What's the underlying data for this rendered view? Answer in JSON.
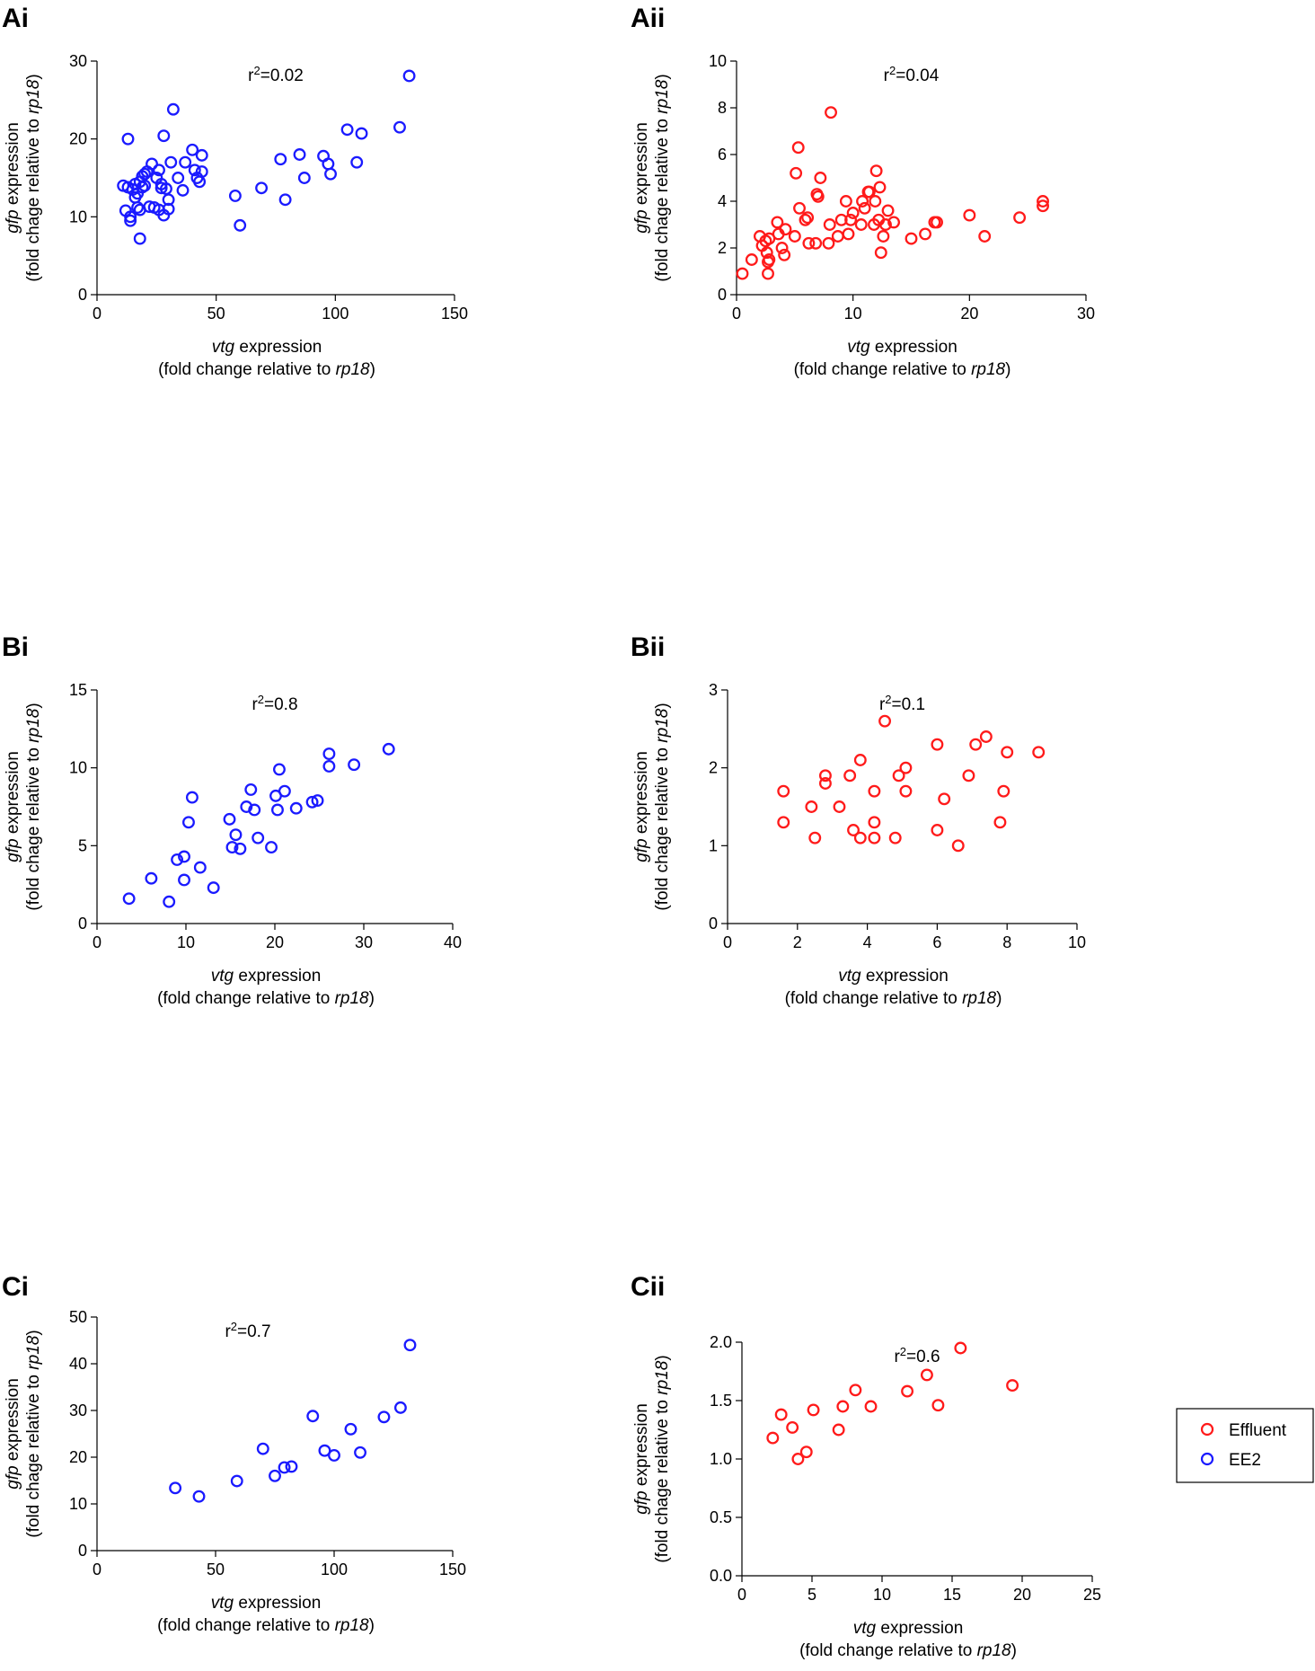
{
  "legend": {
    "entries": [
      {
        "label": "Effluent",
        "color": "#ff1a1a"
      },
      {
        "label": "EE2",
        "color": "#1a1aff"
      }
    ]
  },
  "axis_titles": {
    "x_main": "vtg",
    "x_rest": " expression",
    "x_sub_pre": "(fold change relative to ",
    "x_sub_gene": "rp18",
    "x_sub_post": ")",
    "y_main": "gfp",
    "y_rest": " expression",
    "y_sub_pre": "(fold chage relative to ",
    "y_sub_gene": "rp18",
    "y_sub_post": ")"
  },
  "chart_data": [
    {
      "panel": "Ai",
      "type": "scatter",
      "series": "EE2",
      "color": "#1a1aff",
      "r2_label": "r",
      "r2_sup": "2",
      "r2_value": "=0.02",
      "xlim": [
        0,
        150
      ],
      "ylim": [
        0,
        30
      ],
      "xticks": [
        0,
        50,
        100,
        150
      ],
      "yticks": [
        0,
        10,
        20,
        30
      ],
      "yticklabels": [
        "0",
        "10",
        "20",
        "30"
      ],
      "points": [
        [
          11,
          14
        ],
        [
          12,
          10.8
        ],
        [
          13,
          20
        ],
        [
          13,
          13.8
        ],
        [
          14,
          10
        ],
        [
          14,
          9.5
        ],
        [
          15,
          13.5
        ],
        [
          16,
          14.2
        ],
        [
          16,
          12.5
        ],
        [
          17,
          13
        ],
        [
          17,
          11.2
        ],
        [
          18,
          7.2
        ],
        [
          18,
          10.9
        ],
        [
          18,
          14.5
        ],
        [
          19,
          13.8
        ],
        [
          19,
          15.2
        ],
        [
          20,
          15.5
        ],
        [
          20,
          14
        ],
        [
          21,
          15.8
        ],
        [
          22,
          11.3
        ],
        [
          23,
          16.8
        ],
        [
          24,
          11.2
        ],
        [
          25,
          15
        ],
        [
          26,
          10.9
        ],
        [
          26,
          16
        ],
        [
          27,
          14.2
        ],
        [
          27,
          13.7
        ],
        [
          28,
          10.2
        ],
        [
          28,
          20.4
        ],
        [
          29,
          13.6
        ],
        [
          30,
          11
        ],
        [
          30,
          12.2
        ],
        [
          31,
          17
        ],
        [
          32,
          23.8
        ],
        [
          34,
          15
        ],
        [
          36,
          13.4
        ],
        [
          37,
          17
        ],
        [
          40,
          18.6
        ],
        [
          41,
          16
        ],
        [
          42,
          15
        ],
        [
          43,
          14.5
        ],
        [
          44,
          17.9
        ],
        [
          44,
          15.8
        ],
        [
          58,
          12.7
        ],
        [
          60,
          8.9
        ],
        [
          69,
          13.7
        ],
        [
          77,
          17.4
        ],
        [
          79,
          12.2
        ],
        [
          85,
          18
        ],
        [
          87,
          15
        ],
        [
          95,
          17.8
        ],
        [
          97,
          16.8
        ],
        [
          98,
          15.5
        ],
        [
          105,
          21.2
        ],
        [
          109,
          17
        ],
        [
          111,
          20.7
        ],
        [
          127,
          21.5
        ],
        [
          131,
          28.1
        ]
      ]
    },
    {
      "panel": "Aii",
      "type": "scatter",
      "series": "Effluent",
      "color": "#ff1a1a",
      "r2_label": "r",
      "r2_sup": "2",
      "r2_value": "=0.04",
      "xlim": [
        0,
        30
      ],
      "ylim": [
        0,
        10
      ],
      "xticks": [
        0,
        10,
        20,
        30
      ],
      "yticks": [
        0,
        2,
        4,
        6,
        8,
        10
      ],
      "yticklabels": [
        "0",
        "2",
        "4",
        "6",
        "8",
        "10"
      ],
      "points": [
        [
          0.5,
          0.9
        ],
        [
          1.3,
          1.5
        ],
        [
          2,
          2.5
        ],
        [
          2.2,
          2.1
        ],
        [
          2.5,
          2.3
        ],
        [
          2.6,
          1.8
        ],
        [
          2.7,
          1.4
        ],
        [
          2.7,
          0.9
        ],
        [
          2.8,
          2.4
        ],
        [
          2.8,
          1.5
        ],
        [
          3.5,
          3.1
        ],
        [
          3.6,
          2.6
        ],
        [
          3.9,
          2
        ],
        [
          4.1,
          1.7
        ],
        [
          4.2,
          2.8
        ],
        [
          5,
          2.5
        ],
        [
          5.1,
          5.2
        ],
        [
          5.3,
          6.3
        ],
        [
          5.4,
          3.7
        ],
        [
          5.9,
          3.2
        ],
        [
          6.1,
          3.3
        ],
        [
          6.2,
          2.2
        ],
        [
          6.8,
          2.2
        ],
        [
          6.9,
          4.3
        ],
        [
          7,
          4.2
        ],
        [
          7.2,
          5
        ],
        [
          7.9,
          2.2
        ],
        [
          8,
          3
        ],
        [
          8.1,
          7.8
        ],
        [
          8.7,
          2.5
        ],
        [
          9,
          3.2
        ],
        [
          9.4,
          4
        ],
        [
          9.6,
          2.6
        ],
        [
          9.8,
          3.2
        ],
        [
          10,
          3.5
        ],
        [
          10.7,
          3
        ],
        [
          10.8,
          4
        ],
        [
          11,
          3.7
        ],
        [
          11.3,
          4.4
        ],
        [
          11.4,
          4.4
        ],
        [
          11.8,
          3
        ],
        [
          11.9,
          4
        ],
        [
          12,
          5.3
        ],
        [
          12.2,
          3.2
        ],
        [
          12.3,
          4.6
        ],
        [
          12.4,
          1.8
        ],
        [
          12.6,
          2.5
        ],
        [
          12.8,
          3
        ],
        [
          13,
          3.6
        ],
        [
          13.5,
          3.1
        ],
        [
          15,
          2.4
        ],
        [
          16.2,
          2.6
        ],
        [
          17,
          3.1
        ],
        [
          17.2,
          3.1
        ],
        [
          20,
          3.4
        ],
        [
          21.3,
          2.5
        ],
        [
          24.3,
          3.3
        ],
        [
          26.3,
          3.8
        ],
        [
          26.3,
          4
        ]
      ]
    },
    {
      "panel": "Bi",
      "type": "scatter",
      "series": "EE2",
      "color": "#1a1aff",
      "r2_label": "r",
      "r2_sup": "2",
      "r2_value": "=0.8",
      "xlim": [
        0,
        40
      ],
      "ylim": [
        0,
        15
      ],
      "xticks": [
        0,
        10,
        20,
        30,
        40
      ],
      "yticks": [
        0,
        5,
        10,
        15
      ],
      "yticklabels": [
        "0",
        "5",
        "10",
        "15"
      ],
      "points": [
        [
          3.6,
          1.6
        ],
        [
          6.1,
          2.9
        ],
        [
          8.1,
          1.4
        ],
        [
          9,
          4.1
        ],
        [
          9.8,
          4.3
        ],
        [
          9.8,
          2.8
        ],
        [
          10.3,
          6.5
        ],
        [
          10.7,
          8.1
        ],
        [
          11.6,
          3.6
        ],
        [
          13.1,
          2.3
        ],
        [
          14.9,
          6.7
        ],
        [
          15.2,
          4.9
        ],
        [
          15.6,
          5.7
        ],
        [
          16.1,
          4.8
        ],
        [
          16.8,
          7.5
        ],
        [
          17.3,
          8.6
        ],
        [
          17.7,
          7.3
        ],
        [
          18.1,
          5.5
        ],
        [
          19.6,
          4.9
        ],
        [
          20.1,
          8.2
        ],
        [
          20.3,
          7.3
        ],
        [
          20.5,
          9.9
        ],
        [
          21.1,
          8.5
        ],
        [
          22.4,
          7.4
        ],
        [
          24.2,
          7.8
        ],
        [
          24.8,
          7.9
        ],
        [
          26.1,
          10.1
        ],
        [
          26.1,
          10.9
        ],
        [
          28.9,
          10.2
        ],
        [
          32.8,
          11.2
        ]
      ]
    },
    {
      "panel": "Bii",
      "type": "scatter",
      "series": "Effluent",
      "color": "#ff1a1a",
      "r2_label": "r",
      "r2_sup": "2",
      "r2_value": "=0.1",
      "xlim": [
        0,
        10
      ],
      "ylim": [
        0,
        3
      ],
      "xticks": [
        0,
        2,
        4,
        6,
        8,
        10
      ],
      "yticks": [
        0,
        1,
        2,
        3
      ],
      "yticklabels": [
        "0",
        "1",
        "2",
        "3"
      ],
      "points": [
        [
          1.6,
          1.7
        ],
        [
          1.6,
          1.3
        ],
        [
          2.4,
          1.5
        ],
        [
          2.5,
          1.1
        ],
        [
          2.8,
          1.9
        ],
        [
          2.8,
          1.8
        ],
        [
          3.2,
          1.5
        ],
        [
          3.5,
          1.9
        ],
        [
          3.6,
          1.2
        ],
        [
          3.8,
          1.1
        ],
        [
          3.8,
          2.1
        ],
        [
          4.2,
          1.7
        ],
        [
          4.2,
          1.3
        ],
        [
          4.2,
          1.1
        ],
        [
          4.5,
          2.6
        ],
        [
          4.8,
          1.1
        ],
        [
          4.9,
          1.9
        ],
        [
          5.1,
          2
        ],
        [
          5.1,
          1.7
        ],
        [
          6,
          1.2
        ],
        [
          6,
          2.3
        ],
        [
          6.2,
          1.6
        ],
        [
          6.6,
          1
        ],
        [
          6.9,
          1.9
        ],
        [
          7.1,
          2.3
        ],
        [
          7.4,
          2.4
        ],
        [
          7.8,
          1.3
        ],
        [
          7.9,
          1.7
        ],
        [
          8,
          2.2
        ],
        [
          8.9,
          2.2
        ]
      ]
    },
    {
      "panel": "Ci",
      "type": "scatter",
      "series": "EE2",
      "color": "#1a1aff",
      "r2_label": "r",
      "r2_sup": "2",
      "r2_value": "=0.7",
      "xlim": [
        0,
        150
      ],
      "ylim": [
        0,
        50
      ],
      "xticks": [
        0,
        50,
        100,
        150
      ],
      "yticks": [
        0,
        10,
        20,
        30,
        40,
        50
      ],
      "yticklabels": [
        "0",
        "10",
        "20",
        "30",
        "40",
        "50"
      ],
      "points": [
        [
          33,
          13.4
        ],
        [
          43,
          11.6
        ],
        [
          59,
          14.9
        ],
        [
          70,
          21.8
        ],
        [
          75,
          16
        ],
        [
          79,
          17.8
        ],
        [
          82,
          18
        ],
        [
          91,
          28.8
        ],
        [
          96,
          21.4
        ],
        [
          100,
          20.4
        ],
        [
          107,
          26
        ],
        [
          111,
          21
        ],
        [
          121,
          28.6
        ],
        [
          128,
          30.6
        ],
        [
          132,
          44
        ]
      ]
    },
    {
      "panel": "Cii",
      "type": "scatter",
      "series": "Effluent",
      "color": "#ff1a1a",
      "r2_label": "r",
      "r2_sup": "2",
      "r2_value": "=0.6",
      "xlim": [
        0,
        25
      ],
      "ylim": [
        0,
        2.0
      ],
      "xticks": [
        0,
        5,
        10,
        15,
        20,
        25
      ],
      "yticks": [
        0,
        0.5,
        1.0,
        1.5,
        2.0
      ],
      "yticklabels": [
        "0.0",
        "0.5",
        "1.0",
        "1.5",
        "2.0"
      ],
      "points": [
        [
          2.2,
          1.18
        ],
        [
          2.8,
          1.38
        ],
        [
          3.6,
          1.27
        ],
        [
          4,
          1
        ],
        [
          4.6,
          1.06
        ],
        [
          5.1,
          1.42
        ],
        [
          6.9,
          1.25
        ],
        [
          7.2,
          1.45
        ],
        [
          8.1,
          1.59
        ],
        [
          9.2,
          1.45
        ],
        [
          11.8,
          1.58
        ],
        [
          13.2,
          1.72
        ],
        [
          14,
          1.46
        ],
        [
          15.6,
          1.95
        ],
        [
          19.3,
          1.63
        ]
      ]
    }
  ]
}
